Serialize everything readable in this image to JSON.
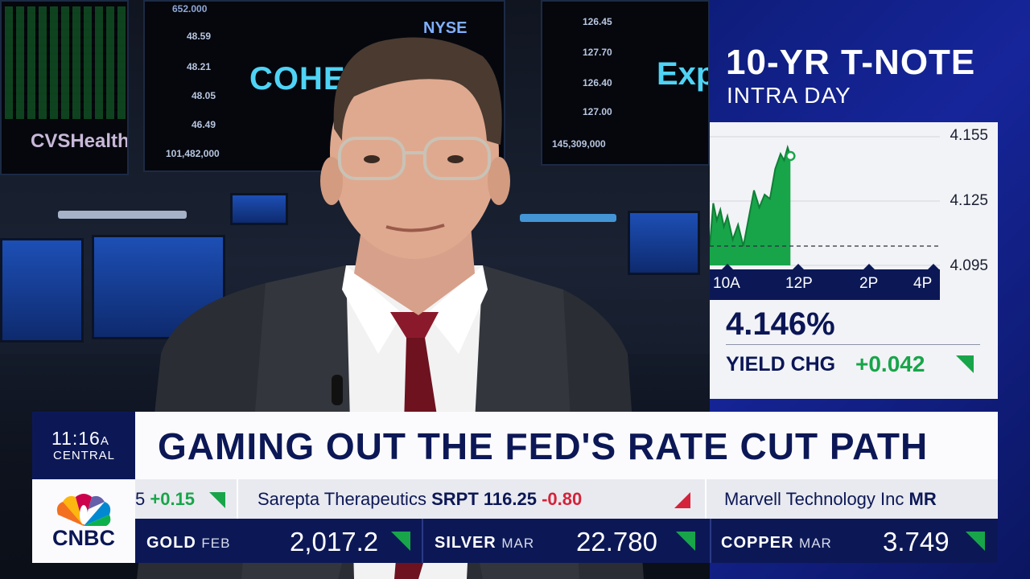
{
  "background": {
    "board_left_logo": "CVSHealth",
    "board_center_logo": "COHERE",
    "board_center_exchange": "NYSE",
    "board_right_logo": "Exp",
    "board_left_numbers": [
      "48.59",
      "48.21",
      "48.05",
      "46.49",
      "101,482,000"
    ],
    "board_right_numbers": [
      "126.45",
      "127.70",
      "126.40",
      "127.00",
      "145,309,000"
    ],
    "board_top_number": "652.000"
  },
  "chart_panel": {
    "title": "10-YR T-NOTE",
    "subtitle": "INTRA DAY",
    "yield_value": "4.146%",
    "yield_change_label": "YIELD CHG",
    "yield_change_value": "+0.042",
    "positive_color": "#18a54a",
    "brand_color": "#0c1856"
  },
  "chart_data": {
    "type": "area",
    "title": "10-YR T-NOTE",
    "subtitle": "INTRA DAY",
    "x_ticks": [
      "10A",
      "12P",
      "2P",
      "4P"
    ],
    "y_ticks": [
      "4.155",
      "4.125",
      "4.095"
    ],
    "ylim": [
      4.095,
      4.155
    ],
    "xlim": [
      9.5,
      16.0
    ],
    "previous_close": 4.104,
    "series": [
      {
        "values": [
          {
            "x": 9.5,
            "y": 4.104
          },
          {
            "x": 9.6,
            "y": 4.124
          },
          {
            "x": 9.7,
            "y": 4.116
          },
          {
            "x": 9.8,
            "y": 4.121
          },
          {
            "x": 9.9,
            "y": 4.113
          },
          {
            "x": 10.0,
            "y": 4.118
          },
          {
            "x": 10.15,
            "y": 4.107
          },
          {
            "x": 10.3,
            "y": 4.114
          },
          {
            "x": 10.45,
            "y": 4.104
          },
          {
            "x": 10.6,
            "y": 4.117
          },
          {
            "x": 10.75,
            "y": 4.13
          },
          {
            "x": 10.9,
            "y": 4.122
          },
          {
            "x": 11.05,
            "y": 4.128
          },
          {
            "x": 11.2,
            "y": 4.126
          },
          {
            "x": 11.35,
            "y": 4.14
          },
          {
            "x": 11.5,
            "y": 4.147
          },
          {
            "x": 11.6,
            "y": 4.144
          },
          {
            "x": 11.7,
            "y": 4.15
          },
          {
            "x": 11.78,
            "y": 4.146
          }
        ],
        "color": "#18a54a"
      }
    ],
    "last_point": {
      "x": 11.78,
      "y": 4.146
    },
    "grid": true
  },
  "lower_third": {
    "time": "11:16",
    "ampm": "A",
    "timezone": "CENTRAL",
    "headline": "GAMING OUT THE FED'S RATE CUT PATH",
    "network": "CNBC"
  },
  "stock_ticker": [
    {
      "symbol_fragment": "5",
      "change": "+0.15",
      "direction": "up"
    },
    {
      "name": "Sarepta Therapeutics",
      "symbol": "SRPT",
      "price": "116.25",
      "change": "-0.80",
      "direction": "down"
    },
    {
      "name": "Marvell Technology Inc",
      "symbol": "MR"
    }
  ],
  "commodities": [
    {
      "name": "GOLD",
      "month": "FEB",
      "value": "2,017.2",
      "direction": "up"
    },
    {
      "name": "SILVER",
      "month": "MAR",
      "value": "22.780",
      "direction": "up"
    },
    {
      "name": "COPPER",
      "month": "MAR",
      "value": "3.749",
      "direction": "up"
    }
  ]
}
